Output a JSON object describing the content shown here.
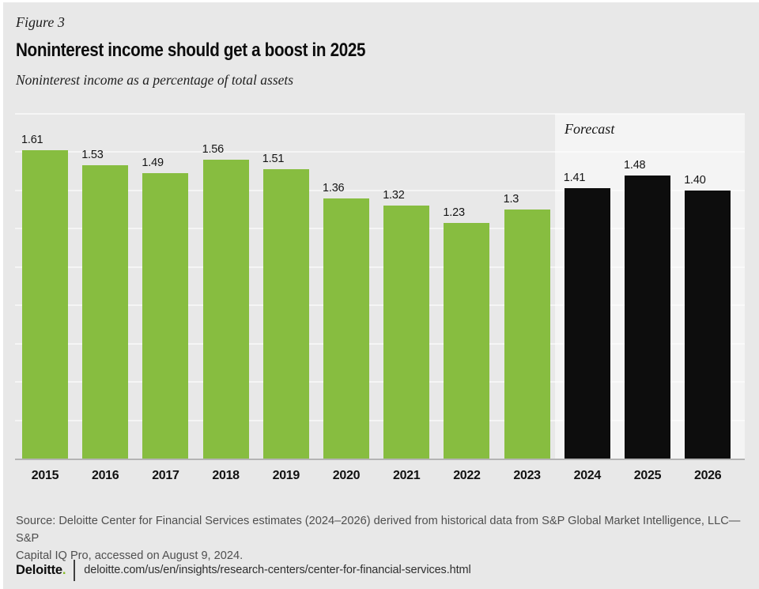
{
  "chart_data": {
    "type": "bar",
    "figure_label": "Figure 3",
    "title": "Noninterest income should get a boost in 2025",
    "subtitle": "Noninterest income as a percentage of total assets",
    "categories": [
      "2015",
      "2016",
      "2017",
      "2018",
      "2019",
      "2020",
      "2021",
      "2022",
      "2023",
      "2024",
      "2025",
      "2026"
    ],
    "values": [
      1.61,
      1.53,
      1.49,
      1.56,
      1.51,
      1.36,
      1.32,
      1.23,
      1.3,
      1.41,
      1.48,
      1.4
    ],
    "bar_labels": [
      "1.61",
      "1.53",
      "1.49",
      "1.56",
      "1.51",
      "1.36",
      "1.32",
      "1.23",
      "1.3",
      "1.41",
      "1.48",
      "1.40"
    ],
    "forecast_start_index": 9,
    "forecast_label": "Forecast",
    "ylim": [
      0,
      1.8
    ],
    "gridline_step": 0.2,
    "grid": "horizontal-only",
    "legend": "none",
    "colors": {
      "actual_bar": "#87bd40",
      "forecast_bar": "#0d0d0d",
      "page_background": "#e8e8e8",
      "forecast_panel": "#f4f4f4",
      "axis_line": "#b4b4b4"
    }
  },
  "footer": {
    "source_line1": "Source: Deloitte Center for Financial Services estimates (2024–2026) derived from historical data from S&P Global Market Intelligence, LLC—S&P",
    "source_line2": "Capital IQ Pro, accessed on August 9, 2024.",
    "brand": "Deloitte",
    "brand_dot": ".",
    "brand_dot_color": "#86bc25",
    "url": "deloitte.com/us/en/insights/research-centers/center-for-financial-services.html"
  }
}
